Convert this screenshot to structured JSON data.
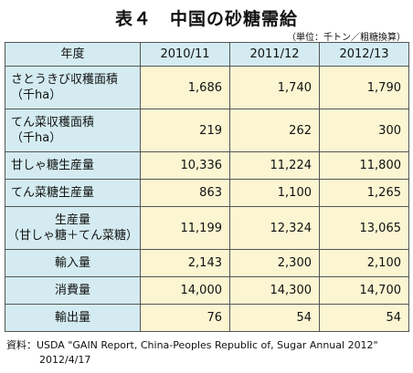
{
  "title": "表４　中国の砂糖需給",
  "unit": "（単位：千トン／粗糖換算）",
  "table": {
    "header": [
      "年度",
      "2010/11",
      "2011/12",
      "2012/13"
    ],
    "rows": [
      {
        "label": [
          "さとうきび収穫面積",
          "（千ha）"
        ],
        "values": [
          "1,686",
          "1,740",
          "1,790"
        ]
      },
      {
        "label": [
          "てん菜収穫面積",
          "（千ha）"
        ],
        "values": [
          "219",
          "262",
          "300"
        ]
      },
      {
        "label": [
          "甘しゃ糖生産量"
        ],
        "values": [
          "10,336",
          "11,224",
          "11,800"
        ]
      },
      {
        "label": [
          "てん菜糖生産量"
        ],
        "values": [
          "863",
          "1,100",
          "1,265"
        ]
      },
      {
        "label": [
          "生産量",
          "（甘しゃ糖＋てん菜糖）"
        ],
        "values": [
          "11,199",
          "12,324",
          "13,065"
        ]
      },
      {
        "label": [
          "輸入量"
        ],
        "values": [
          "2,143",
          "2,300",
          "2,100"
        ]
      },
      {
        "label": [
          "消費量"
        ],
        "values": [
          "14,000",
          "14,300",
          "14,700"
        ]
      },
      {
        "label": [
          "輸出量"
        ],
        "values": [
          "76",
          "54",
          "54"
        ]
      }
    ]
  },
  "source": {
    "line1": "資料：USDA \"GAIN Report, China-Peoples Republic of, Sugar Annual 2012\"",
    "line2": "2012/4/17"
  }
}
